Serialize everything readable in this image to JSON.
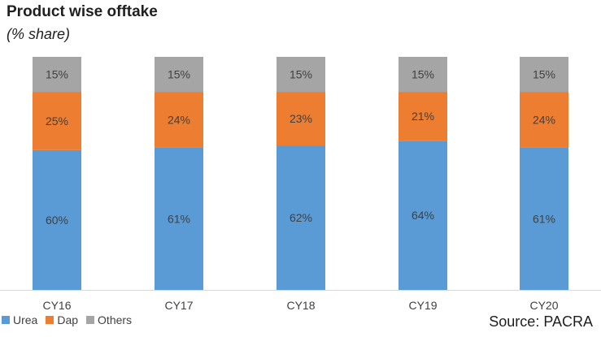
{
  "header": {
    "title": "Product wise offtake",
    "subtitle": "(% share)"
  },
  "source": "Source: PACRA",
  "colors": {
    "Urea": "#5b9bd5",
    "Dap": "#ed7d31",
    "Others": "#a5a5a5"
  },
  "chart_data": {
    "type": "bar",
    "stacked": true,
    "categories": [
      "CY16",
      "CY17",
      "CY18",
      "CY19",
      "CY20"
    ],
    "series": [
      {
        "name": "Urea",
        "values": [
          60,
          61,
          62,
          64,
          61
        ],
        "labels": [
          "60%",
          "61%",
          "62%",
          "64%",
          "61%"
        ]
      },
      {
        "name": "Dap",
        "values": [
          25,
          24,
          23,
          21,
          24
        ],
        "labels": [
          "25%",
          "24%",
          "23%",
          "21%",
          "24%"
        ]
      },
      {
        "name": "Others",
        "values": [
          15,
          15,
          15,
          15,
          15
        ],
        "labels": [
          "15%",
          "15%",
          "15%",
          "15%",
          "15%"
        ]
      }
    ],
    "title": "Product wise offtake",
    "subtitle": "(% share)",
    "ylim": [
      0,
      100
    ],
    "grid": false,
    "legend": "bottom-left"
  }
}
